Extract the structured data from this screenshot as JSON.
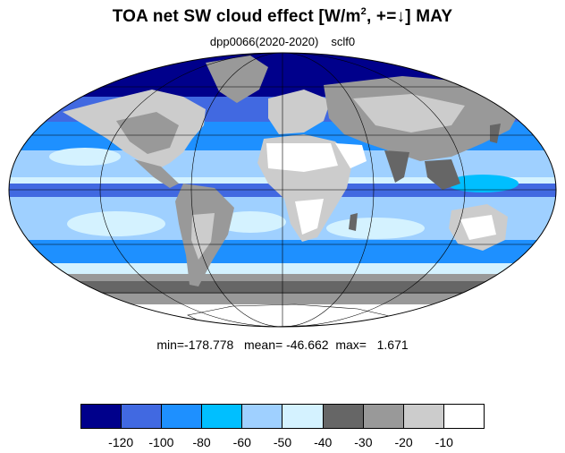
{
  "title": {
    "main": "TOA net SW cloud effect [W/m",
    "sup": "2",
    "rest": ", +=↓]  MAY"
  },
  "subtitle": {
    "experiment": "dpp0066(2020-2020)",
    "variable": "sclf0"
  },
  "stats": {
    "text": "min=-178.778   mean= -46.662  max=   1.671"
  },
  "map": {
    "projection": "mollweide",
    "ocean_base_color": "#87CEFA",
    "land_color": "#ffffff",
    "graticule_color": "#000000"
  },
  "colorbar": {
    "colors": [
      "#00008B",
      "#4169E1",
      "#1E90FF",
      "#00BFFF",
      "#9FD0FF",
      "#D4F2FF",
      "#666666",
      "#999999",
      "#CCCCCC",
      "#FFFFFF"
    ],
    "labels": [
      "-120",
      "-100",
      "-80",
      "-60",
      "-50",
      "-40",
      "-30",
      "-20",
      "-10"
    ]
  }
}
